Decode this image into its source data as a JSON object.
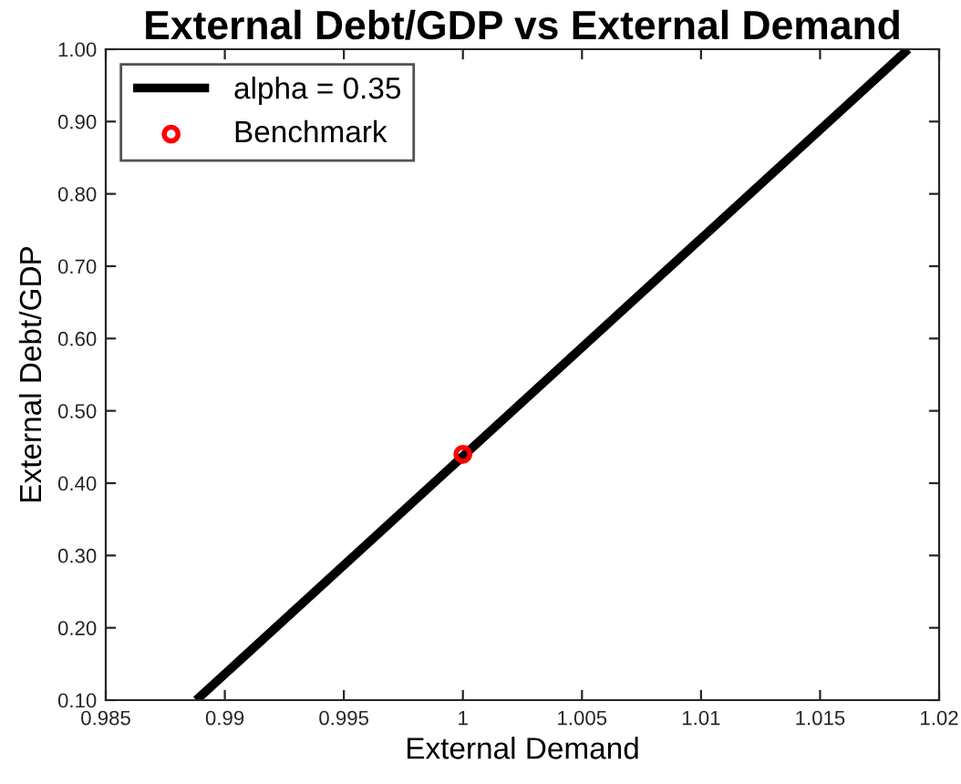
{
  "chart_data": {
    "type": "line",
    "title": "External Debt/GDP vs External Demand",
    "xlabel": "External Demand",
    "ylabel": "External Debt/GDP",
    "series": [
      {
        "name": "alpha = 0.35",
        "color": "#000000",
        "x": [
          0.9888,
          1.0187
        ],
        "values": [
          0.1,
          1.0
        ],
        "marker": "none",
        "line_style": "solid"
      },
      {
        "name": "Benchmark",
        "type": "scatter",
        "color": "#ff0000",
        "x": [
          1.0
        ],
        "values": [
          0.44
        ],
        "marker": "circle"
      }
    ],
    "xlim": [
      0.985,
      1.02
    ],
    "xticks": [
      0.985,
      0.99,
      0.995,
      {
        "value": 1.0,
        "label": "1"
      },
      1.005,
      1.01,
      1.015,
      1.02
    ],
    "ylim": [
      0.1,
      1.0
    ],
    "yticks": [
      {
        "value": 0.1,
        "label": "0.10"
      },
      {
        "value": 0.2,
        "label": "0.20"
      },
      {
        "value": 0.3,
        "label": "0.30"
      },
      {
        "value": 0.4,
        "label": "0.40"
      },
      {
        "value": 0.5,
        "label": "0.50"
      },
      {
        "value": 0.6,
        "label": "0.60"
      },
      {
        "value": 0.7,
        "label": "0.70"
      },
      {
        "value": 0.8,
        "label": "0.80"
      },
      {
        "value": 0.9,
        "label": "0.90"
      },
      {
        "value": 1.0,
        "label": "1.00"
      }
    ],
    "grid": false,
    "legend": "top left"
  }
}
